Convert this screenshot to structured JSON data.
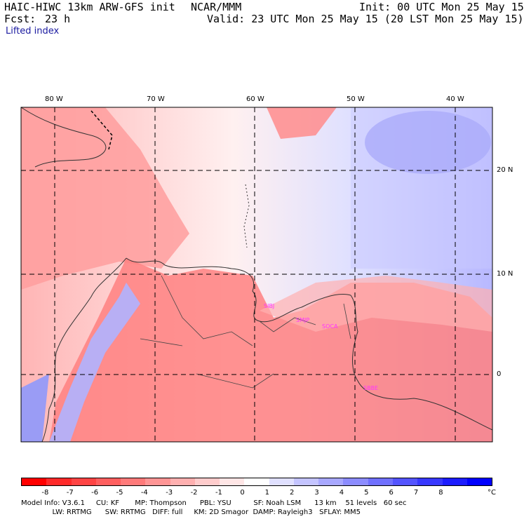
{
  "header": {
    "model_title": "HAIC-HIWC 13km ARW-GFS init",
    "org": "NCAR/MMM",
    "init": "Init: 00 UTC Mon 25 May 15",
    "fcst_label": "Fcst:",
    "fcst_value": "23 h",
    "valid": "Valid: 23 UTC Mon 25 May 15 (20 LST Mon 25 May 15)",
    "field_name": "Lifted index"
  },
  "map": {
    "lon_labels": [
      "80 W",
      "70 W",
      "60 W",
      "50 W",
      "40 W"
    ],
    "lat_labels": [
      "20 N",
      "10 N",
      "0"
    ],
    "stations": [
      "SIBJ",
      "SMJP",
      "SOCA",
      "SBBE"
    ],
    "station_color": "#ff33ff"
  },
  "colorbar": {
    "ticks": [
      "-8",
      "-7",
      "-6",
      "-5",
      "-4",
      "-3",
      "-2",
      "-1",
      "0",
      "1",
      "2",
      "3",
      "4",
      "5",
      "6",
      "7",
      "8"
    ],
    "unit": "°C",
    "colors": [
      "#ff0000",
      "#ff2a2a",
      "#ff4444",
      "#ff5f5f",
      "#ff7a7a",
      "#ff9595",
      "#ffb0b0",
      "#ffcccc",
      "#ffe6e6",
      "#ffffff",
      "#e0e0ff",
      "#c4c4ff",
      "#a8a8ff",
      "#8c8cff",
      "#7070ff",
      "#5454ff",
      "#3838ff",
      "#1c1cff",
      "#0000ff"
    ]
  },
  "model_info": {
    "line1": "Model Info: V3.6.1     CU: KF       MP: Thompson      PBL: YSU          SF: Noah LSM      13 km    51 levels   60 sec",
    "line2": "              LW: RRTMG      SW: RRTMG   DIFF: full     KM: 2D Smagor  DAMP: Rayleigh3   SFLAY: MM5"
  }
}
